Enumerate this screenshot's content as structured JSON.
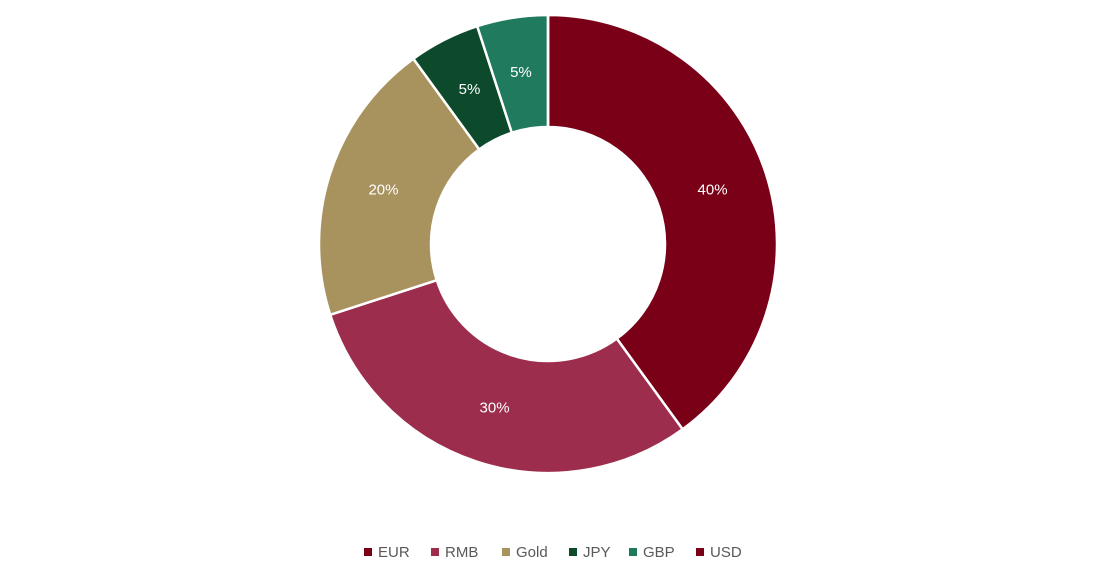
{
  "chart_data": {
    "type": "donut",
    "categories": [
      "EUR",
      "RMB",
      "Gold",
      "JPY",
      "GBP",
      "USD"
    ],
    "values": [
      40,
      30,
      20,
      5,
      5,
      0
    ],
    "value_labels": [
      "40%",
      "30%",
      "20%",
      "5%",
      "5%",
      null
    ],
    "colors": [
      "#7a0018",
      "#9c2d4c",
      "#a8935f",
      "#0c4a2b",
      "#1f7a5e",
      "#7a0018"
    ],
    "legend": "bottom"
  }
}
